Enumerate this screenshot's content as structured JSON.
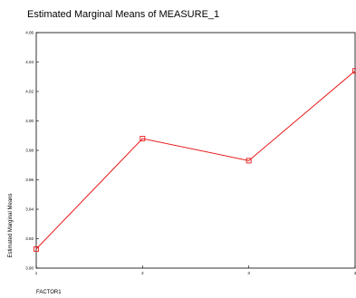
{
  "chart_data": {
    "type": "line",
    "title": "Estimated Marginal Means of MEASURE_1",
    "xlabel": "FACTOR1",
    "ylabel": "Estimated Marginal Means",
    "categories": [
      "1",
      "2",
      "3",
      "4"
    ],
    "series": [
      {
        "values": [
          3.913,
          3.988,
          3.973,
          4.034
        ],
        "color": "#e81a1a"
      }
    ],
    "ylim": [
      3.9,
      4.06
    ],
    "yticks": [
      "3.90",
      "3.92",
      "3.94",
      "3.96",
      "3.98",
      "4.00",
      "4.02",
      "4.04",
      "4.06"
    ],
    "grid": false,
    "marker": "square"
  }
}
